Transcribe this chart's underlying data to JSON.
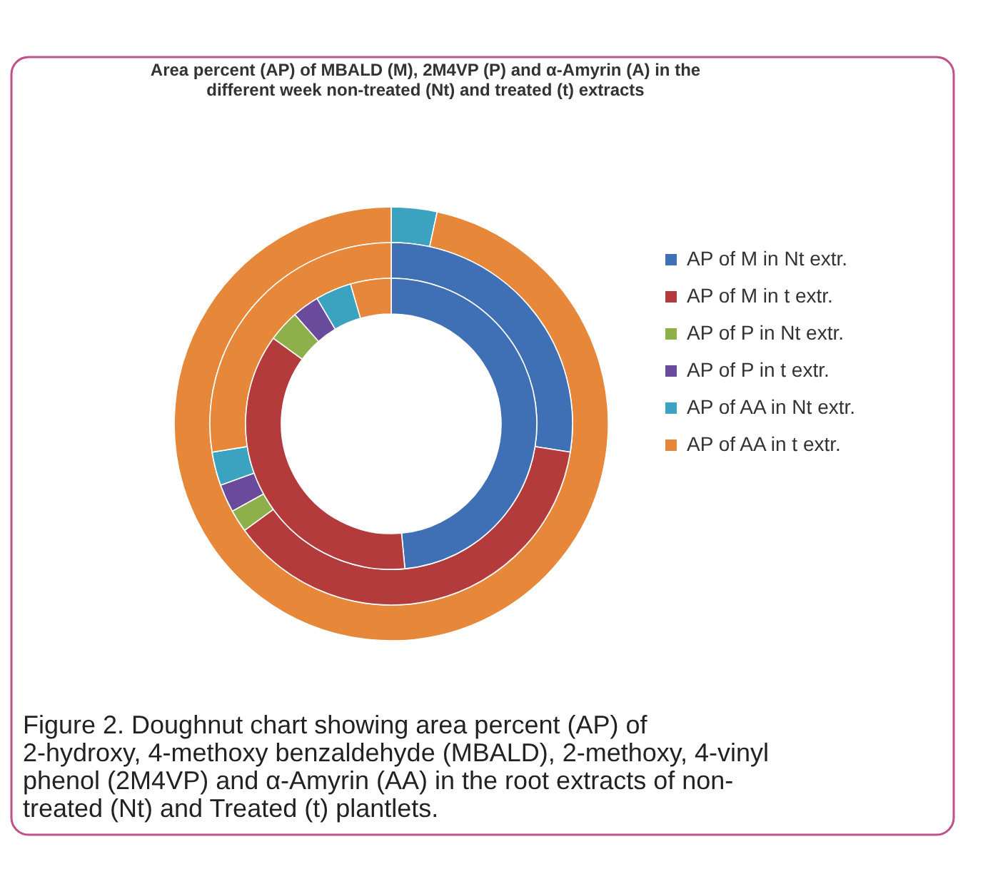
{
  "chart_data": {
    "type": "donut",
    "title": [
      "Area percent (AP) of MBALD (M), 2M4VP (P) and α-Amyrin (A)  in the",
      "different week  non-treated (Nt) and treated (t) extracts"
    ],
    "categories": [
      "AP of M in Nt extr.",
      "AP of M in t extr.",
      "AP of P in Nt extr.",
      "AP of P in t extr.",
      "AP of AA in Nt extr.",
      "AP of AA in t extr."
    ],
    "colors": [
      "#3f6fb5",
      "#b33b3b",
      "#8db04a",
      "#6a4a9a",
      "#3ba3c0",
      "#e6873a"
    ],
    "series": [
      {
        "values": [
          0,
          0,
          0,
          0,
          3.4,
          96.6
        ]
      },
      {
        "values": [
          27.5,
          37.5,
          2,
          2.5,
          3,
          27.5
        ]
      },
      {
        "values": [
          48.5,
          36.5,
          3.5,
          3,
          4,
          4.5
        ]
      }
    ],
    "legend": "right",
    "annotations": [
      "Figure 2. Doughnut chart showing area percent (AP) of 2-hydroxy, 4-methoxy benzaldehyde (MBALD), 2-methoxy, 4-vinyl phenol (2M4VP) and α-Amyrin (AA) in the root extracts of non-treated (Nt) and Treated (t) plantlets."
    ]
  }
}
